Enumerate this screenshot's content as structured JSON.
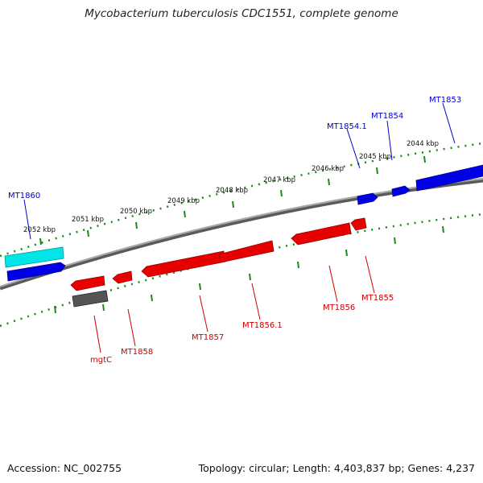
{
  "title": "Mycobacterium tuberculosis CDC1551, complete genome",
  "footer": {
    "accession": "Accession: NC_002755",
    "summary": "Topology: circular; Length: 4,403,837 bp; Genes: 4,237"
  },
  "scale": {
    "ticks": [
      "2052 kbp",
      "2051 kbp",
      "2050 kbp",
      "2049 kbp",
      "2048 kbp",
      "2047 kbp",
      "2046 kbp",
      "2045 kbp",
      "2044 kbp"
    ]
  },
  "colors": {
    "forward_gene": "#0000e6",
    "reverse_gene": "#e60000",
    "rna_gene": "#00e5e5",
    "other_gene": "#555555",
    "backbone": "#8c8c8c",
    "tick": "#1a8a1a"
  },
  "genes": [
    {
      "name": "MT1860",
      "strand": "forward"
    },
    {
      "name": "MT1854.1",
      "strand": "forward"
    },
    {
      "name": "MT1854",
      "strand": "forward"
    },
    {
      "name": "MT1853",
      "strand": "forward"
    },
    {
      "name": "mgtC",
      "strand": "reverse"
    },
    {
      "name": "MT1858",
      "strand": "reverse"
    },
    {
      "name": "MT1857",
      "strand": "reverse"
    },
    {
      "name": "MT1856.1",
      "strand": "reverse"
    },
    {
      "name": "MT1856",
      "strand": "reverse"
    },
    {
      "name": "MT1855",
      "strand": "reverse"
    }
  ]
}
